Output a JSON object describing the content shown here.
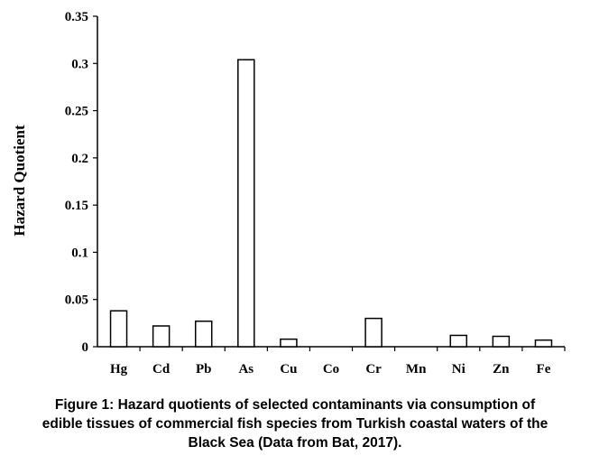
{
  "chart_data": {
    "type": "bar",
    "title": "",
    "xlabel": "",
    "ylabel": "Hazard Quotient",
    "categories": [
      "Hg",
      "Cd",
      "Pb",
      "As",
      "Cu",
      "Co",
      "Cr",
      "Mn",
      "Ni",
      "Zn",
      "Fe"
    ],
    "values": [
      0.038,
      0.022,
      0.027,
      0.304,
      0.008,
      0.0,
      0.03,
      0.0,
      0.012,
      0.011,
      0.007
    ],
    "ylim": [
      0,
      0.35
    ],
    "yticks": [
      0,
      0.05,
      0.1,
      0.15,
      0.2,
      0.25,
      0.3,
      0.35
    ],
    "ytick_labels": [
      "0",
      "0.05",
      "0.1",
      "0.15",
      "0.2",
      "0.25",
      "0.3",
      "0.35"
    ],
    "grid": false,
    "legend": "none",
    "bar_fill": "#ffffff",
    "bar_stroke": "#000000"
  },
  "caption": {
    "lines": [
      "Figure 1: Hazard quotients of selected contaminants via consumption of",
      "edible tissues of commercial fish species from Turkish coastal waters of the",
      "Black Sea (Data from Bat, 2017)."
    ]
  }
}
